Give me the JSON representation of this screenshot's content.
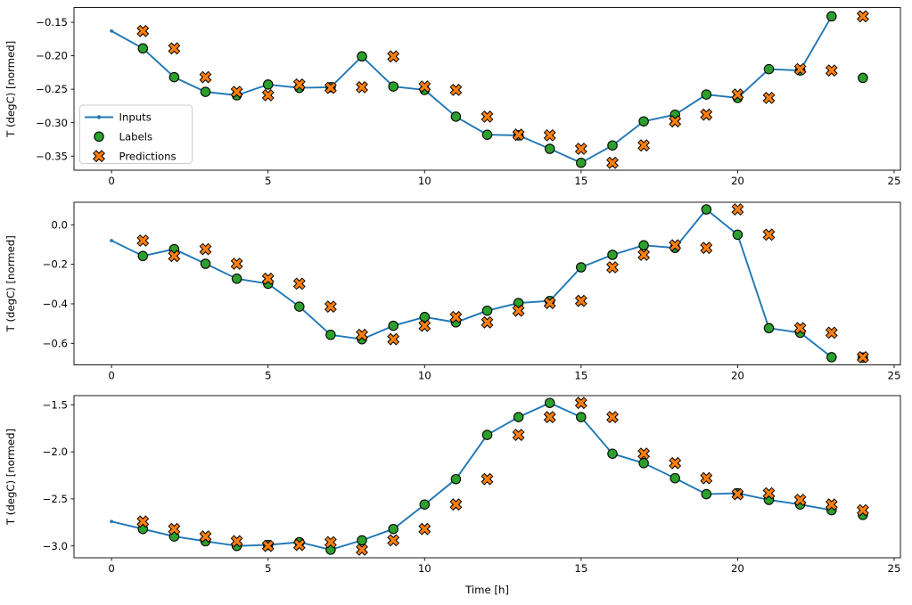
{
  "figure": {
    "background": "#ffffff",
    "xlabel": "Time [h]"
  },
  "colors": {
    "inputs": "#1f77b4",
    "labels": "#2ca02c",
    "predictions": "#ff7f0e",
    "marker_edge": "#000000",
    "spine": "#000000",
    "legend_border": "#cccccc"
  },
  "legend": {
    "labels": [
      "Inputs",
      "Labels",
      "Predictions"
    ]
  },
  "chart_data": [
    {
      "type": "line",
      "ylabel": "T (degC) [normed]",
      "xlim": [
        -1.2,
        25.2
      ],
      "ylim": [
        -0.371,
        -0.128
      ],
      "xticks": [
        0,
        5,
        10,
        15,
        20,
        25
      ],
      "xtick_labels": [
        "0",
        "5",
        "10",
        "15",
        "20",
        "25"
      ],
      "ytick_values": [
        -0.15,
        -0.2,
        -0.25,
        -0.3,
        -0.35
      ],
      "ytick_labels": [
        "−0.15",
        "−0.20",
        "−0.25",
        "−0.30",
        "−0.35"
      ],
      "legend_visible": true,
      "series": [
        {
          "name": "Inputs",
          "style": "line-dot",
          "color": "#1f77b4",
          "x": [
            0,
            1,
            2,
            3,
            4,
            5,
            6,
            7,
            8,
            9,
            10,
            11,
            12,
            13,
            14,
            15,
            16,
            17,
            18,
            19,
            20,
            21,
            22,
            23
          ],
          "y": [
            -0.163,
            -0.189,
            -0.232,
            -0.254,
            -0.259,
            -0.243,
            -0.248,
            -0.247,
            -0.201,
            -0.246,
            -0.251,
            -0.291,
            -0.318,
            -0.319,
            -0.339,
            -0.36,
            -0.334,
            -0.298,
            -0.288,
            -0.258,
            -0.263,
            -0.22,
            -0.222,
            -0.141
          ]
        },
        {
          "name": "Labels",
          "style": "scatter-circle",
          "color": "#2ca02c",
          "x": [
            1,
            2,
            3,
            4,
            5,
            6,
            7,
            8,
            9,
            10,
            11,
            12,
            13,
            14,
            15,
            16,
            17,
            18,
            19,
            20,
            21,
            22,
            23,
            24
          ],
          "y": [
            -0.189,
            -0.232,
            -0.254,
            -0.259,
            -0.243,
            -0.248,
            -0.247,
            -0.201,
            -0.246,
            -0.251,
            -0.291,
            -0.318,
            -0.319,
            -0.339,
            -0.36,
            -0.334,
            -0.298,
            -0.288,
            -0.258,
            -0.263,
            -0.22,
            -0.222,
            -0.141,
            -0.233
          ]
        },
        {
          "name": "Predictions",
          "style": "scatter-x",
          "color": "#ff7f0e",
          "x": [
            1,
            2,
            3,
            4,
            5,
            6,
            7,
            8,
            9,
            10,
            11,
            12,
            13,
            14,
            15,
            16,
            17,
            18,
            19,
            20,
            21,
            22,
            23,
            24
          ],
          "y": [
            -0.163,
            -0.189,
            -0.232,
            -0.254,
            -0.259,
            -0.243,
            -0.248,
            -0.247,
            -0.201,
            -0.246,
            -0.251,
            -0.291,
            -0.318,
            -0.319,
            -0.339,
            -0.36,
            -0.334,
            -0.298,
            -0.288,
            -0.258,
            -0.263,
            -0.22,
            -0.222,
            -0.141
          ]
        }
      ]
    },
    {
      "type": "line",
      "ylabel": "T (degC) [normed]",
      "xlim": [
        -1.2,
        25.2
      ],
      "ylim": [
        -0.709,
        0.114
      ],
      "xticks": [
        0,
        5,
        10,
        15,
        20,
        25
      ],
      "xtick_labels": [
        "0",
        "5",
        "10",
        "15",
        "20",
        "25"
      ],
      "ytick_values": [
        0.0,
        -0.2,
        -0.4,
        -0.6
      ],
      "ytick_labels": [
        "0.0",
        "−0.2",
        "−0.4",
        "−0.6"
      ],
      "legend_visible": false,
      "series": [
        {
          "name": "Inputs",
          "style": "line-dot",
          "color": "#1f77b4",
          "x": [
            0,
            1,
            2,
            3,
            4,
            5,
            6,
            7,
            8,
            9,
            10,
            11,
            12,
            13,
            14,
            15,
            16,
            17,
            18,
            19,
            20,
            21,
            22,
            23
          ],
          "y": [
            -0.08,
            -0.158,
            -0.123,
            -0.197,
            -0.273,
            -0.298,
            -0.414,
            -0.557,
            -0.579,
            -0.511,
            -0.467,
            -0.494,
            -0.435,
            -0.396,
            -0.385,
            -0.215,
            -0.152,
            -0.104,
            -0.117,
            0.078,
            -0.05,
            -0.523,
            -0.546,
            -0.67
          ]
        },
        {
          "name": "Labels",
          "style": "scatter-circle",
          "color": "#2ca02c",
          "x": [
            1,
            2,
            3,
            4,
            5,
            6,
            7,
            8,
            9,
            10,
            11,
            12,
            13,
            14,
            15,
            16,
            17,
            18,
            19,
            20,
            21,
            22,
            23,
            24
          ],
          "y": [
            -0.158,
            -0.123,
            -0.197,
            -0.273,
            -0.298,
            -0.414,
            -0.557,
            -0.579,
            -0.511,
            -0.467,
            -0.494,
            -0.435,
            -0.396,
            -0.385,
            -0.215,
            -0.152,
            -0.104,
            -0.117,
            0.078,
            -0.05,
            -0.523,
            -0.546,
            -0.67,
            -0.672
          ]
        },
        {
          "name": "Predictions",
          "style": "scatter-x",
          "color": "#ff7f0e",
          "x": [
            1,
            2,
            3,
            4,
            5,
            6,
            7,
            8,
            9,
            10,
            11,
            12,
            13,
            14,
            15,
            16,
            17,
            18,
            19,
            20,
            21,
            22,
            23,
            24
          ],
          "y": [
            -0.08,
            -0.158,
            -0.123,
            -0.197,
            -0.273,
            -0.298,
            -0.414,
            -0.557,
            -0.579,
            -0.511,
            -0.467,
            -0.494,
            -0.435,
            -0.396,
            -0.385,
            -0.215,
            -0.152,
            -0.104,
            -0.117,
            0.078,
            -0.05,
            -0.523,
            -0.546,
            -0.67
          ]
        }
      ]
    },
    {
      "type": "line",
      "ylabel": "T (degC) [normed]",
      "xlim": [
        -1.2,
        25.2
      ],
      "ylim": [
        -3.126,
        -1.402
      ],
      "xticks": [
        0,
        5,
        10,
        15,
        20,
        25
      ],
      "xtick_labels": [
        "0",
        "5",
        "10",
        "15",
        "20",
        "25"
      ],
      "ytick_values": [
        -1.5,
        -2.0,
        -2.5,
        -3.0
      ],
      "ytick_labels": [
        "−1.5",
        "−2.0",
        "−2.5",
        "−3.0"
      ],
      "legend_visible": false,
      "series": [
        {
          "name": "Inputs",
          "style": "line-dot",
          "color": "#1f77b4",
          "x": [
            0,
            1,
            2,
            3,
            4,
            5,
            6,
            7,
            8,
            9,
            10,
            11,
            12,
            13,
            14,
            15,
            16,
            17,
            18,
            19,
            20,
            21,
            22,
            23
          ],
          "y": [
            -2.74,
            -2.82,
            -2.9,
            -2.95,
            -3.0,
            -2.99,
            -2.96,
            -3.04,
            -2.94,
            -2.82,
            -2.56,
            -2.29,
            -1.82,
            -1.63,
            -1.48,
            -1.63,
            -2.02,
            -2.12,
            -2.28,
            -2.45,
            -2.44,
            -2.51,
            -2.56,
            -2.62
          ]
        },
        {
          "name": "Labels",
          "style": "scatter-circle",
          "color": "#2ca02c",
          "x": [
            1,
            2,
            3,
            4,
            5,
            6,
            7,
            8,
            9,
            10,
            11,
            12,
            13,
            14,
            15,
            16,
            17,
            18,
            19,
            20,
            21,
            22,
            23,
            24
          ],
          "y": [
            -2.82,
            -2.9,
            -2.95,
            -3.0,
            -2.99,
            -2.96,
            -3.04,
            -2.94,
            -2.82,
            -2.56,
            -2.29,
            -1.82,
            -1.63,
            -1.48,
            -1.63,
            -2.02,
            -2.12,
            -2.28,
            -2.45,
            -2.44,
            -2.51,
            -2.56,
            -2.62,
            -2.67
          ]
        },
        {
          "name": "Predictions",
          "style": "scatter-x",
          "color": "#ff7f0e",
          "x": [
            1,
            2,
            3,
            4,
            5,
            6,
            7,
            8,
            9,
            10,
            11,
            12,
            13,
            14,
            15,
            16,
            17,
            18,
            19,
            20,
            21,
            22,
            23,
            24
          ],
          "y": [
            -2.74,
            -2.82,
            -2.9,
            -2.95,
            -3.0,
            -2.99,
            -2.96,
            -3.04,
            -2.94,
            -2.82,
            -2.56,
            -2.29,
            -1.82,
            -1.63,
            -1.48,
            -1.63,
            -2.02,
            -2.12,
            -2.28,
            -2.45,
            -2.44,
            -2.51,
            -2.56,
            -2.62
          ]
        }
      ]
    }
  ]
}
